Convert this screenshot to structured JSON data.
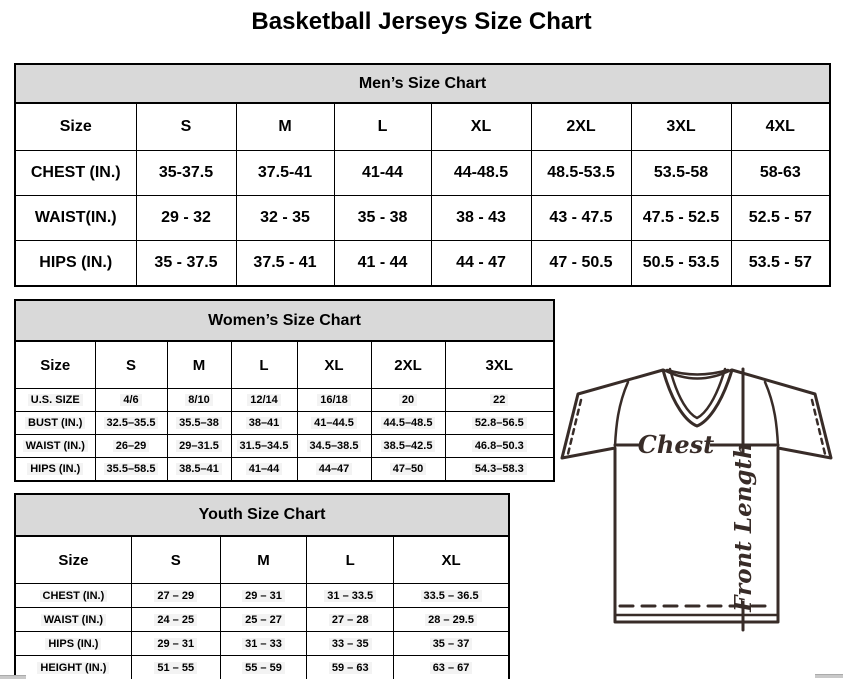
{
  "page_title": "Basketball Jerseys Size Chart",
  "tables": {
    "men": {
      "title": "Men’s Size Chart",
      "columns": [
        "Size",
        "S",
        "M",
        "L",
        "XL",
        "2XL",
        "3XL",
        "4XL"
      ],
      "rows": [
        {
          "label": "CHEST (IN.)",
          "values": [
            "35-37.5",
            "37.5-41",
            "41-44",
            "44-48.5",
            "48.5-53.5",
            "53.5-58",
            "58-63"
          ]
        },
        {
          "label": "WAIST(IN.)",
          "values": [
            "29 - 32",
            "32 - 35",
            "35 - 38",
            "38 - 43",
            "43 - 47.5",
            "47.5 - 52.5",
            "52.5 - 57"
          ]
        },
        {
          "label": "HIPS (IN.)",
          "values": [
            "35 - 37.5",
            "37.5 - 41",
            "41 - 44",
            "44 - 47",
            "47 - 50.5",
            "50.5 - 53.5",
            "53.5 - 57"
          ]
        }
      ]
    },
    "women": {
      "title": "Women’s Size Chart",
      "columns": [
        "Size",
        "S",
        "M",
        "L",
        "XL",
        "2XL",
        "3XL"
      ],
      "rows": [
        {
          "label": "U.S. SIZE",
          "values": [
            "4/6",
            "8/10",
            "12/14",
            "16/18",
            "20",
            "22"
          ]
        },
        {
          "label": "BUST (IN.)",
          "values": [
            "32.5–35.5",
            "35.5–38",
            "38–41",
            "41–44.5",
            "44.5–48.5",
            "52.8–56.5"
          ]
        },
        {
          "label": "WAIST (IN.)",
          "values": [
            "26–29",
            "29–31.5",
            "31.5–34.5",
            "34.5–38.5",
            "38.5–42.5",
            "46.8–50.3"
          ]
        },
        {
          "label": "HIPS (IN.)",
          "values": [
            "35.5–58.5",
            "38.5–41",
            "41–44",
            "44–47",
            "47–50",
            "54.3–58.3"
          ]
        }
      ]
    },
    "youth": {
      "title": "Youth Size Chart",
      "columns": [
        "Size",
        "S",
        "M",
        "L",
        "XL"
      ],
      "rows": [
        {
          "label": "CHEST (IN.)",
          "values": [
            "27 – 29",
            "29 – 31",
            "31 – 33.5",
            "33.5 – 36.5"
          ]
        },
        {
          "label": "WAIST (IN.)",
          "values": [
            "24 – 25",
            "25 – 27",
            "27 – 28",
            "28 – 29.5"
          ]
        },
        {
          "label": "HIPS (IN.)",
          "values": [
            "29 – 31",
            "31 – 33",
            "33 – 35",
            "35 – 37"
          ]
        },
        {
          "label": "HEIGHT (IN.)",
          "values": [
            "51 – 55",
            "55 – 59",
            "59 – 63",
            "63 – 67"
          ]
        }
      ]
    }
  },
  "diagram": {
    "chest_label": "Chest",
    "front_length_label": "Front Length",
    "line_color": "#382c28"
  }
}
